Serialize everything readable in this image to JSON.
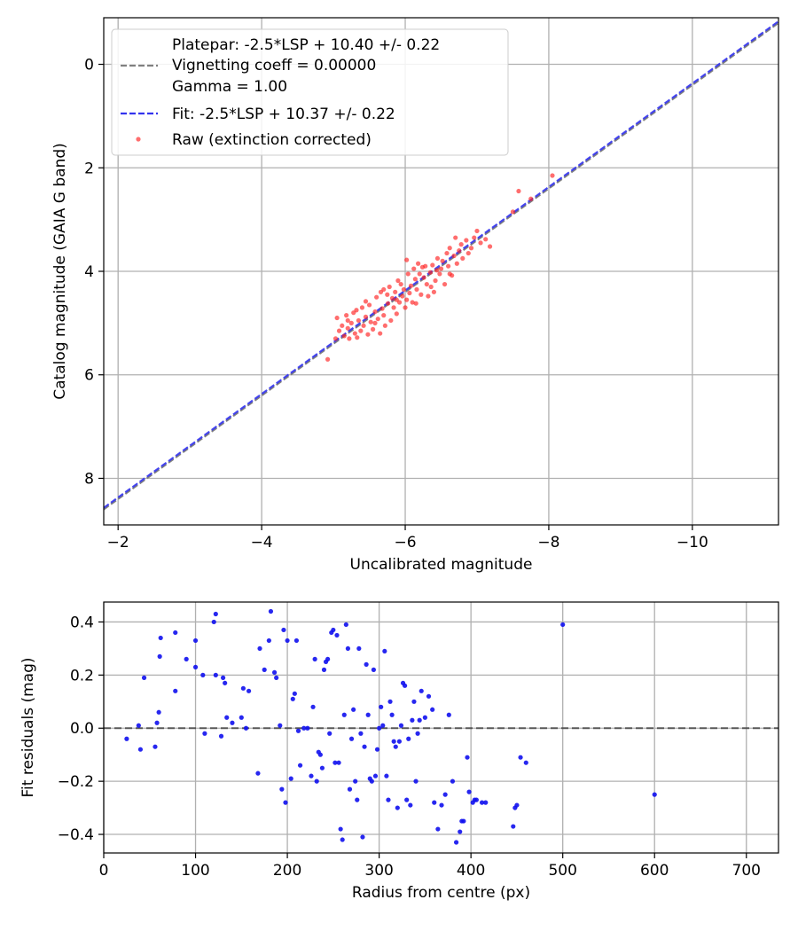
{
  "chart_data": [
    {
      "type": "line",
      "xlabel": "Uncalibrated magnitude",
      "ylabel": "Catalog magnitude (GAIA G band)",
      "xlim": [
        -1.8,
        -11.2
      ],
      "ylim": [
        -0.9,
        8.9
      ],
      "x_inverted": true,
      "y_inverted": true,
      "grid": true,
      "xticks": [
        -2,
        -4,
        -6,
        -8,
        -10
      ],
      "xtick_labels": [
        "−2",
        "−4",
        "−6",
        "−8",
        "−10"
      ],
      "yticks": [
        0,
        2,
        4,
        6,
        8
      ],
      "ytick_labels": [
        "0",
        "2",
        "4",
        "6",
        "8"
      ],
      "legend_position": "upper-left",
      "series": [
        {
          "name": "Platepar: -2.5*LSP + 10.40 +/- 0.22",
          "name_line2": "Vignetting coeff = 0.00000",
          "name_line3": "Gamma = 1.00",
          "kind": "line",
          "style": "dashed",
          "color": "#808080",
          "slope": 1,
          "intercept": 10.4,
          "x": [
            -1.8,
            -11.2
          ],
          "y": [
            8.6,
            -0.8
          ]
        },
        {
          "name": "Fit: -2.5*LSP + 10.37 +/- 0.22",
          "kind": "line",
          "style": "dashed",
          "color": "#3333ee",
          "slope": 1,
          "intercept": 10.37,
          "x": [
            -1.8,
            -11.2
          ],
          "y": [
            8.57,
            -0.83
          ]
        },
        {
          "name": "Raw (extinction corrected)",
          "kind": "scatter",
          "color": "#ff2020",
          "points": [
            [
              -4.92,
              5.7
            ],
            [
              -5.03,
              5.3
            ],
            [
              -5.05,
              4.9
            ],
            [
              -5.08,
              5.15
            ],
            [
              -5.12,
              5.05
            ],
            [
              -5.15,
              5.25
            ],
            [
              -5.18,
              4.85
            ],
            [
              -5.2,
              5.1
            ],
            [
              -5.22,
              5.3
            ],
            [
              -5.25,
              5.0
            ],
            [
              -5.28,
              4.8
            ],
            [
              -5.3,
              5.2
            ],
            [
              -5.33,
              5.28
            ],
            [
              -5.35,
              4.95
            ],
            [
              -5.38,
              5.15
            ],
            [
              -5.4,
              4.7
            ],
            [
              -5.42,
              5.05
            ],
            [
              -5.45,
              4.88
            ],
            [
              -5.48,
              5.22
            ],
            [
              -5.5,
              4.65
            ],
            [
              -5.52,
              4.98
            ],
            [
              -5.55,
              5.12
            ],
            [
              -5.58,
              4.78
            ],
            [
              -5.6,
              4.5
            ],
            [
              -5.62,
              4.92
            ],
            [
              -5.65,
              5.2
            ],
            [
              -5.66,
              4.4
            ],
            [
              -5.68,
              4.72
            ],
            [
              -5.7,
              4.85
            ],
            [
              -5.72,
              5.05
            ],
            [
              -5.75,
              4.45
            ],
            [
              -5.76,
              4.62
            ],
            [
              -5.78,
              4.3
            ],
            [
              -5.8,
              4.95
            ],
            [
              -5.82,
              4.52
            ],
            [
              -5.84,
              4.7
            ],
            [
              -5.86,
              4.4
            ],
            [
              -5.88,
              4.82
            ],
            [
              -5.9,
              4.18
            ],
            [
              -5.92,
              4.6
            ],
            [
              -5.94,
              4.25
            ],
            [
              -5.96,
              4.48
            ],
            [
              -5.98,
              4.35
            ],
            [
              -6.0,
              4.7
            ],
            [
              -6.02,
              4.55
            ],
            [
              -6.04,
              4.05
            ],
            [
              -6.06,
              4.42
            ],
            [
              -6.08,
              4.28
            ],
            [
              -6.1,
              4.6
            ],
            [
              -6.12,
              3.95
            ],
            [
              -6.14,
              4.15
            ],
            [
              -6.16,
              4.35
            ],
            [
              -6.18,
              3.85
            ],
            [
              -6.2,
              4.05
            ],
            [
              -6.22,
              4.45
            ],
            [
              -6.24,
              3.92
            ],
            [
              -6.26,
              4.12
            ],
            [
              -6.28,
              3.9
            ],
            [
              -6.3,
              4.25
            ],
            [
              -6.32,
              4.48
            ],
            [
              -6.35,
              4.02
            ],
            [
              -6.38,
              3.88
            ],
            [
              -6.4,
              4.4
            ],
            [
              -6.42,
              4.18
            ],
            [
              -6.45,
              3.75
            ],
            [
              -6.48,
              4.05
            ],
            [
              -6.5,
              3.95
            ],
            [
              -6.52,
              3.8
            ],
            [
              -6.55,
              4.25
            ],
            [
              -6.58,
              3.65
            ],
            [
              -6.6,
              3.9
            ],
            [
              -6.62,
              3.55
            ],
            [
              -6.65,
              4.08
            ],
            [
              -6.68,
              3.7
            ],
            [
              -6.7,
              3.35
            ],
            [
              -6.72,
              3.85
            ],
            [
              -6.75,
              3.6
            ],
            [
              -6.78,
              3.48
            ],
            [
              -6.8,
              3.75
            ],
            [
              -6.85,
              3.4
            ],
            [
              -6.88,
              3.65
            ],
            [
              -6.92,
              3.55
            ],
            [
              -6.96,
              3.35
            ],
            [
              -7.0,
              3.22
            ],
            [
              -7.05,
              3.45
            ],
            [
              -7.12,
              3.38
            ],
            [
              -7.18,
              3.52
            ],
            [
              -7.5,
              2.85
            ],
            [
              -7.58,
              2.45
            ],
            [
              -7.75,
              2.6
            ],
            [
              -8.05,
              2.15
            ],
            [
              -5.32,
              4.75
            ],
            [
              -5.58,
              5.0
            ],
            [
              -5.88,
              4.55
            ],
            [
              -6.15,
              4.62
            ],
            [
              -6.36,
              4.3
            ],
            [
              -5.45,
              4.58
            ],
            [
              -5.7,
              4.35
            ],
            [
              -6.02,
              3.78
            ],
            [
              -6.44,
              3.98
            ],
            [
              -6.62,
              4.05
            ],
            [
              -5.2,
              4.95
            ]
          ]
        }
      ]
    },
    {
      "type": "scatter",
      "xlabel": "Radius from centre (px)",
      "ylabel": "Fit residuals (mag)",
      "xlim": [
        0,
        735
      ],
      "ylim": [
        -0.47,
        0.475
      ],
      "grid": true,
      "xticks": [
        0,
        100,
        200,
        300,
        400,
        500,
        600,
        700
      ],
      "xtick_labels": [
        "0",
        "100",
        "200",
        "300",
        "400",
        "500",
        "600",
        "700"
      ],
      "yticks": [
        0.4,
        0.2,
        0.0,
        -0.2,
        -0.4
      ],
      "ytick_labels": [
        "0.4",
        "0.2",
        "0.0",
        "−0.2",
        "−0.4"
      ],
      "reference_line": {
        "y": 0.0,
        "style": "dashed",
        "color": "#444444"
      },
      "series": [
        {
          "color": "#1010ee",
          "points": [
            [
              25,
              -0.04
            ],
            [
              38,
              0.01
            ],
            [
              40,
              -0.08
            ],
            [
              44,
              0.19
            ],
            [
              56,
              -0.07
            ],
            [
              58,
              0.02
            ],
            [
              60,
              0.06
            ],
            [
              61,
              0.27
            ],
            [
              62,
              0.34
            ],
            [
              78,
              0.14
            ],
            [
              78,
              0.36
            ],
            [
              90,
              0.26
            ],
            [
              100,
              0.33
            ],
            [
              100,
              0.23
            ],
            [
              108,
              0.2
            ],
            [
              110,
              -0.02
            ],
            [
              120,
              0.4
            ],
            [
              122,
              0.43
            ],
            [
              122,
              0.2
            ],
            [
              128,
              -0.03
            ],
            [
              130,
              0.19
            ],
            [
              132,
              0.17
            ],
            [
              134,
              0.04
            ],
            [
              140,
              0.02
            ],
            [
              150,
              0.04
            ],
            [
              152,
              0.15
            ],
            [
              155,
              0.0
            ],
            [
              158,
              0.14
            ],
            [
              168,
              -0.17
            ],
            [
              170,
              0.3
            ],
            [
              175,
              0.22
            ],
            [
              180,
              0.33
            ],
            [
              182,
              0.44
            ],
            [
              186,
              0.21
            ],
            [
              188,
              0.19
            ],
            [
              192,
              0.01
            ],
            [
              194,
              -0.23
            ],
            [
              196,
              0.37
            ],
            [
              198,
              -0.28
            ],
            [
              200,
              0.33
            ],
            [
              204,
              -0.19
            ],
            [
              206,
              0.11
            ],
            [
              208,
              0.13
            ],
            [
              210,
              0.33
            ],
            [
              212,
              -0.01
            ],
            [
              214,
              -0.14
            ],
            [
              218,
              0.0
            ],
            [
              222,
              0.0
            ],
            [
              226,
              -0.18
            ],
            [
              228,
              0.08
            ],
            [
              230,
              0.26
            ],
            [
              232,
              -0.2
            ],
            [
              234,
              -0.09
            ],
            [
              236,
              -0.1
            ],
            [
              238,
              -0.15
            ],
            [
              240,
              0.22
            ],
            [
              242,
              0.25
            ],
            [
              244,
              0.26
            ],
            [
              246,
              -0.02
            ],
            [
              248,
              0.36
            ],
            [
              250,
              0.37
            ],
            [
              252,
              -0.13
            ],
            [
              254,
              0.35
            ],
            [
              256,
              -0.13
            ],
            [
              258,
              -0.38
            ],
            [
              260,
              -0.42
            ],
            [
              262,
              0.05
            ],
            [
              264,
              0.39
            ],
            [
              266,
              0.3
            ],
            [
              268,
              -0.23
            ],
            [
              270,
              -0.04
            ],
            [
              272,
              0.07
            ],
            [
              274,
              -0.2
            ],
            [
              276,
              -0.27
            ],
            [
              278,
              0.3
            ],
            [
              280,
              -0.02
            ],
            [
              282,
              -0.41
            ],
            [
              284,
              -0.07
            ],
            [
              286,
              0.24
            ],
            [
              288,
              0.05
            ],
            [
              290,
              -0.19
            ],
            [
              292,
              -0.2
            ],
            [
              294,
              0.22
            ],
            [
              296,
              -0.18
            ],
            [
              298,
              -0.08
            ],
            [
              300,
              0.0
            ],
            [
              302,
              0.08
            ],
            [
              304,
              0.01
            ],
            [
              306,
              0.29
            ],
            [
              308,
              -0.18
            ],
            [
              310,
              -0.27
            ],
            [
              312,
              0.1
            ],
            [
              314,
              0.05
            ],
            [
              316,
              -0.05
            ],
            [
              318,
              -0.07
            ],
            [
              320,
              -0.3
            ],
            [
              322,
              -0.05
            ],
            [
              324,
              0.01
            ],
            [
              326,
              0.17
            ],
            [
              328,
              0.16
            ],
            [
              330,
              -0.27
            ],
            [
              332,
              -0.04
            ],
            [
              334,
              -0.29
            ],
            [
              336,
              0.03
            ],
            [
              338,
              0.1
            ],
            [
              340,
              -0.2
            ],
            [
              342,
              -0.02
            ],
            [
              344,
              0.03
            ],
            [
              346,
              0.14
            ],
            [
              350,
              0.04
            ],
            [
              354,
              0.12
            ],
            [
              358,
              0.07
            ],
            [
              360,
              -0.28
            ],
            [
              364,
              -0.38
            ],
            [
              368,
              -0.29
            ],
            [
              372,
              -0.25
            ],
            [
              376,
              0.05
            ],
            [
              380,
              -0.2
            ],
            [
              384,
              -0.43
            ],
            [
              388,
              -0.39
            ],
            [
              390,
              -0.35
            ],
            [
              392,
              -0.35
            ],
            [
              396,
              -0.11
            ],
            [
              398,
              -0.24
            ],
            [
              402,
              -0.28
            ],
            [
              404,
              -0.27
            ],
            [
              406,
              -0.27
            ],
            [
              412,
              -0.28
            ],
            [
              416,
              -0.28
            ],
            [
              446,
              -0.37
            ],
            [
              448,
              -0.3
            ],
            [
              450,
              -0.29
            ],
            [
              454,
              -0.11
            ],
            [
              460,
              -0.13
            ],
            [
              500,
              0.39
            ],
            [
              600,
              -0.25
            ]
          ]
        }
      ]
    }
  ]
}
